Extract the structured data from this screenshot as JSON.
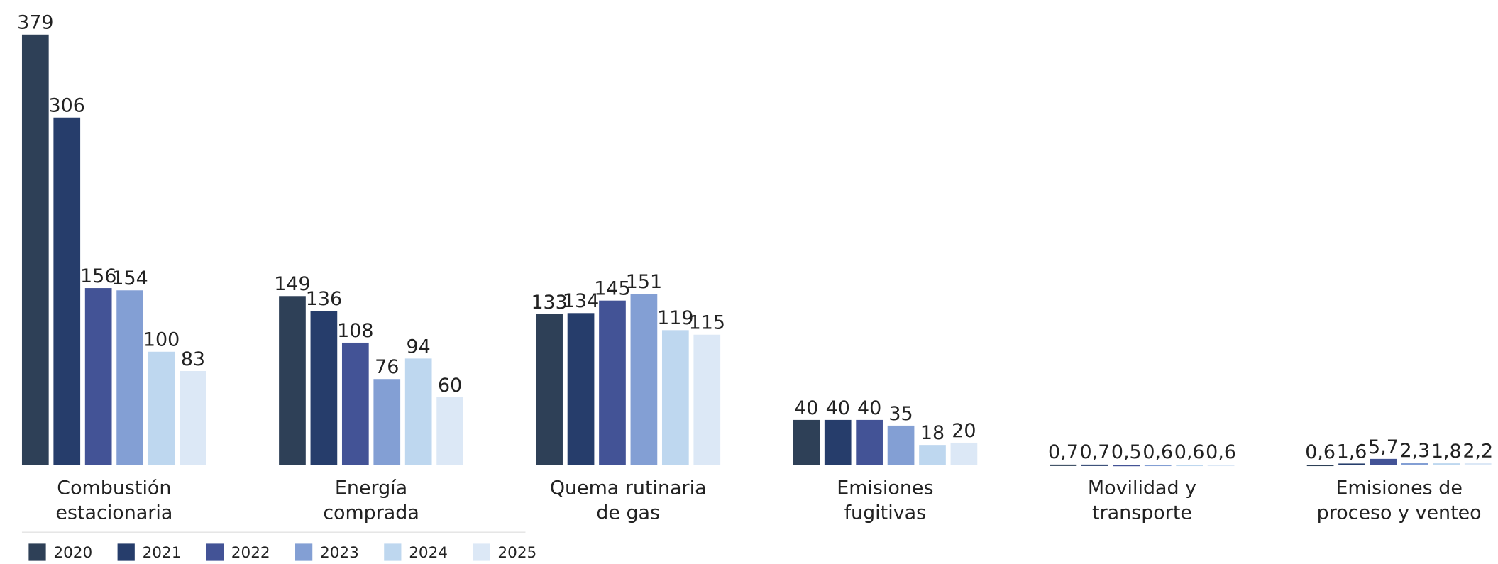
{
  "chart_data": {
    "type": "bar",
    "categories": [
      [
        "Combustión",
        "estacionaria"
      ],
      [
        "Energía",
        "comprada"
      ],
      [
        "Quema rutinaria",
        "de gas"
      ],
      [
        "Emisiones",
        "fugitivas"
      ],
      [
        "Movilidad y",
        "transporte"
      ],
      [
        "Emisiones de",
        "proceso y venteo"
      ]
    ],
    "series": [
      {
        "name": "2020",
        "color": "#2e4057",
        "values": [
          379,
          149,
          133,
          40,
          0.7,
          0.6
        ],
        "value_labels": [
          "379",
          "149",
          "133",
          "40",
          "0,7",
          "0,6"
        ]
      },
      {
        "name": "2021",
        "color": "#263d6b",
        "values": [
          306,
          136,
          134,
          40,
          0.7,
          1.6
        ],
        "value_labels": [
          "306",
          "136",
          "134",
          "40",
          "0,7",
          "1,6"
        ]
      },
      {
        "name": "2022",
        "color": "#435396",
        "values": [
          156,
          108,
          145,
          40,
          0.5,
          5.7
        ],
        "value_labels": [
          "156",
          "108",
          "145",
          "40",
          "0,5",
          "5,7"
        ]
      },
      {
        "name": "2023",
        "color": "#839fd4",
        "values": [
          154,
          76,
          151,
          35,
          0.6,
          2.3
        ],
        "value_labels": [
          "154",
          "76",
          "151",
          "35",
          "0,6",
          "2,3"
        ]
      },
      {
        "name": "2024",
        "color": "#bed7ef",
        "values": [
          100,
          94,
          119,
          18,
          0.6,
          1.8
        ],
        "value_labels": [
          "100",
          "94",
          "119",
          "18",
          "0,6",
          "1,8"
        ]
      },
      {
        "name": "2025",
        "color": "#dce8f6",
        "values": [
          83,
          60,
          115,
          20,
          0.6,
          2.2
        ],
        "value_labels": [
          "83",
          "60",
          "115",
          "20",
          "0,6",
          "2,2"
        ]
      }
    ],
    "ylim": [
      0,
      400
    ],
    "legend": "bottom-left"
  }
}
